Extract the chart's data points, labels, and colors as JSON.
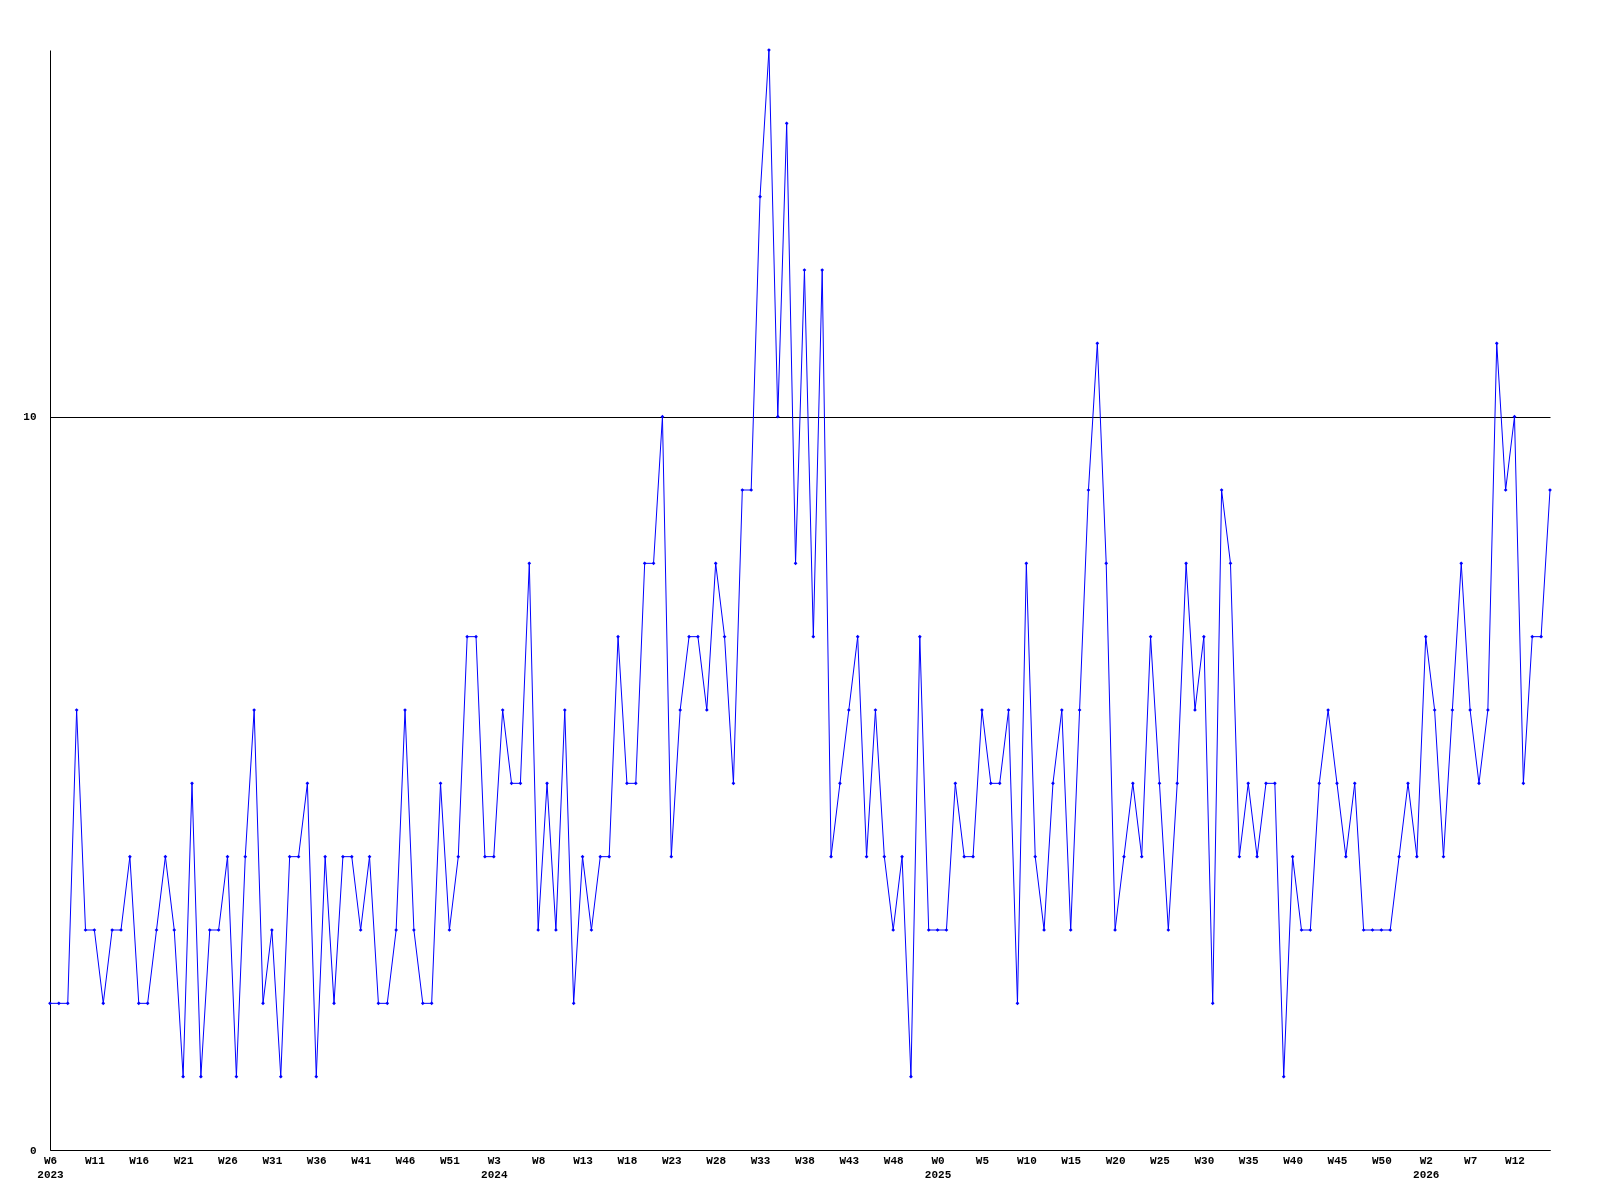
{
  "chart_data": {
    "type": "line",
    "categories": [
      "W6\n2023",
      null,
      null,
      null,
      null,
      "W11",
      null,
      null,
      null,
      null,
      "W16",
      null,
      null,
      null,
      null,
      "W21",
      null,
      null,
      null,
      null,
      "W26",
      null,
      null,
      null,
      null,
      "W31",
      null,
      null,
      null,
      null,
      "W36",
      null,
      null,
      null,
      null,
      "W41",
      null,
      null,
      null,
      null,
      "W46",
      null,
      null,
      null,
      null,
      "W51",
      null,
      null,
      null,
      null,
      "W3\n2024",
      null,
      null,
      null,
      null,
      "W8",
      null,
      null,
      null,
      null,
      "W13",
      null,
      null,
      null,
      null,
      "W18",
      null,
      null,
      null,
      null,
      "W23",
      null,
      null,
      null,
      null,
      "W28",
      null,
      null,
      null,
      null,
      "W33",
      null,
      null,
      null,
      null,
      "W38",
      null,
      null,
      null,
      null,
      "W43",
      null,
      null,
      null,
      null,
      "W48",
      null,
      null,
      null,
      null,
      "W0\n2025",
      null,
      null,
      null,
      null,
      "W5",
      null,
      null,
      null,
      null,
      "W10",
      null,
      null,
      null,
      null,
      "W15",
      null,
      null,
      null,
      null,
      "W20",
      null,
      null,
      null,
      null,
      "W25",
      null,
      null,
      null,
      null,
      "W30",
      null,
      null,
      null,
      null,
      "W35",
      null,
      null,
      null,
      null,
      "W40",
      null,
      null,
      null,
      null,
      "W45",
      null,
      null,
      null,
      null,
      "W50",
      null,
      null,
      null,
      null,
      "W2\n2026",
      null,
      null,
      null,
      null,
      "W7",
      null,
      null,
      null,
      null,
      "W12",
      null,
      null,
      null,
      null
    ],
    "series": [
      {
        "color": "#0000ff",
        "values": [
          2,
          2,
          2,
          6,
          3,
          3,
          2,
          3,
          3,
          4,
          2,
          2,
          3,
          4,
          3,
          1,
          5,
          1,
          3,
          3,
          4,
          1,
          4,
          6,
          2,
          3,
          1,
          4,
          4,
          5,
          1,
          4,
          2,
          4,
          4,
          3,
          4,
          2,
          2,
          3,
          6,
          3,
          2,
          2,
          5,
          3,
          4,
          7,
          7,
          4,
          4,
          6,
          5,
          5,
          8,
          3,
          5,
          3,
          6,
          2,
          4,
          3,
          4,
          4,
          7,
          5,
          5,
          8,
          8,
          10,
          4,
          6,
          7,
          7,
          6,
          8,
          7,
          5,
          9,
          9,
          13,
          15,
          10,
          14,
          8,
          12,
          7,
          12,
          4,
          5,
          6,
          7,
          4,
          6,
          4,
          3,
          4,
          1,
          7,
          3,
          3,
          3,
          5,
          4,
          4,
          6,
          5,
          5,
          6,
          2,
          8,
          4,
          3,
          5,
          6,
          3,
          6,
          9,
          11,
          8,
          3,
          4,
          5,
          4,
          7,
          5,
          3,
          5,
          8,
          6,
          7,
          2,
          9,
          8,
          4,
          5,
          4,
          5,
          5,
          1,
          4,
          3,
          3,
          5,
          6,
          5,
          4,
          5,
          3,
          3,
          3,
          3,
          4,
          5,
          4,
          7,
          6,
          4,
          6,
          8,
          6,
          5,
          6,
          11,
          9,
          10,
          5,
          7,
          7,
          9
        ]
      }
    ],
    "ylim": [
      0,
      15
    ],
    "yticks": [
      0,
      10
    ],
    "grid": "y",
    "marker": "diamond",
    "line_style": "solid"
  }
}
